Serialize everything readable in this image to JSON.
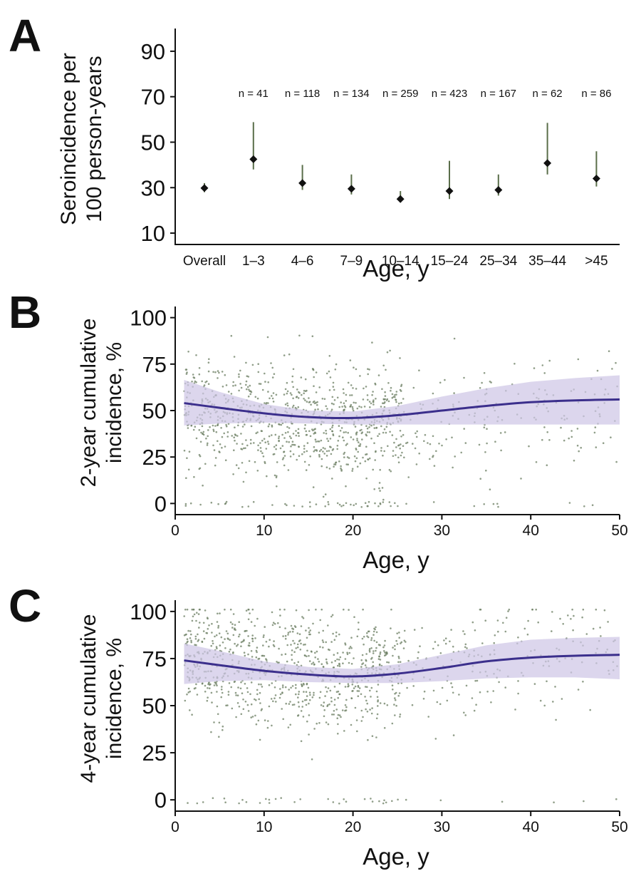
{
  "chart_data": [
    {
      "type": "scatter",
      "panel_label": "A",
      "title": "",
      "xlabel": "Age, y",
      "ylabel": "Seroincidence per 100 person-years",
      "ylabel_lines": [
        "Seroincidence per",
        "100 person-years"
      ],
      "ylim": [
        5,
        100
      ],
      "yticks": [
        10,
        30,
        50,
        70,
        90
      ],
      "grid": false,
      "categories": [
        "Overall",
        "1–3",
        "4–6",
        "7–9",
        "10–14",
        "15–24",
        "25–34",
        "35–44",
        ">45"
      ],
      "values": [
        29.8,
        42.5,
        32.0,
        29.5,
        25.0,
        28.5,
        29.0,
        40.8,
        34.0
      ],
      "ci_low": [
        28.0,
        38.0,
        29.0,
        27.0,
        23.5,
        25.0,
        26.5,
        35.8,
        30.5
      ],
      "ci_high": [
        32.0,
        58.8,
        40.0,
        35.8,
        28.5,
        41.8,
        35.8,
        58.5,
        46.0
      ],
      "n_labels": [
        "",
        "n = 41",
        "n = 118",
        "n = 134",
        "n = 259",
        "n = 423",
        "n = 167",
        "n = 62",
        "n = 86"
      ]
    },
    {
      "type": "scatter",
      "panel_label": "B",
      "title": "",
      "xlabel": "Age, y",
      "ylabel": "2-year cumulative incidence, %",
      "ylabel_lines": [
        "2-year cumulative",
        "incidence, %"
      ],
      "xlim": [
        0,
        50
      ],
      "ylim": [
        -6,
        106
      ],
      "xticks": [
        0,
        10,
        20,
        30,
        40,
        50
      ],
      "yticks": [
        0,
        25,
        50,
        75,
        100
      ],
      "grid": false,
      "fit_line": {
        "x": [
          1,
          5,
          10,
          15,
          20,
          25,
          30,
          35,
          40,
          45,
          50
        ],
        "y": [
          54.0,
          51.5,
          48.5,
          46.5,
          46.0,
          47.5,
          50.0,
          52.5,
          54.5,
          55.5,
          56.0
        ],
        "ci_low": [
          42.0,
          43.0,
          43.5,
          43.0,
          42.5,
          42.5,
          42.5,
          42.5,
          42.5,
          42.5,
          42.5
        ],
        "ci_high": [
          66.5,
          60.0,
          53.5,
          50.0,
          49.5,
          52.5,
          57.5,
          62.0,
          65.5,
          67.5,
          69.0
        ]
      }
    },
    {
      "type": "scatter",
      "panel_label": "C",
      "title": "",
      "xlabel": "Age, y",
      "ylabel": "4-year cumulative incidence, %",
      "ylabel_lines": [
        "4-year cumulative",
        "incidence, %"
      ],
      "xlim": [
        0,
        50
      ],
      "ylim": [
        -6,
        106
      ],
      "xticks": [
        0,
        10,
        20,
        30,
        40,
        50
      ],
      "yticks": [
        0,
        25,
        50,
        75,
        100
      ],
      "grid": false,
      "fit_line": {
        "x": [
          1,
          5,
          10,
          15,
          20,
          25,
          30,
          35,
          40,
          45,
          50
        ],
        "y": [
          74.0,
          71.5,
          68.5,
          66.5,
          65.5,
          67.0,
          70.0,
          73.5,
          75.5,
          76.5,
          77.0
        ],
        "ci_low": [
          61.5,
          63.0,
          63.5,
          62.5,
          62.0,
          62.0,
          63.0,
          64.5,
          65.0,
          65.0,
          64.0
        ],
        "ci_high": [
          83.0,
          79.0,
          73.5,
          70.5,
          69.5,
          72.0,
          77.0,
          82.0,
          85.0,
          86.0,
          86.5
        ]
      }
    }
  ],
  "colors": {
    "axis": "#111111",
    "point_marker": "#111111",
    "error_bar": "#5a6e4a",
    "scatter_points": "#6b7d62",
    "fit_line": "#3b2f8c",
    "ci_band": "#cfc6e6"
  }
}
